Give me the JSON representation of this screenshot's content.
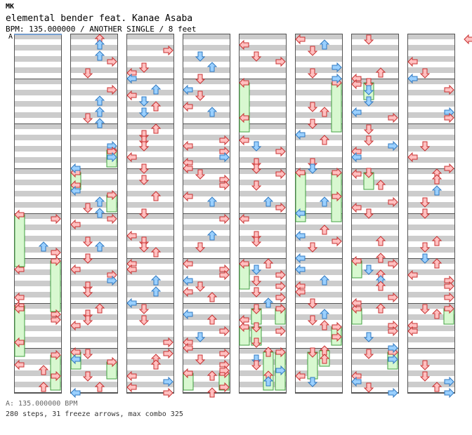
{
  "header": {
    "mark": "MK",
    "song_line": "elemental bender feat. Kanae Asaba",
    "info_line": "BPM: 135.000000 / ANOTHER SINGLE / 8 feet"
  },
  "marker": "A",
  "footer": {
    "bpm_line": "A: 135.000000 BPM",
    "stats_line": "280 steps, 31 freeze arrows, max combo 325"
  },
  "chart_data": {
    "type": "step-chart",
    "bpm": 135.0,
    "difficulty": "ANOTHER SINGLE",
    "level_feet": 8,
    "steps": 280,
    "freeze_arrows": 31,
    "max_combo": 325,
    "columns": 8,
    "measures_per_column": 8,
    "lanes": [
      "left",
      "down",
      "up",
      "right"
    ]
  },
  "colors": {
    "note_red": "#ffc0c0",
    "note_red_stroke": "#c83030",
    "note_blue": "#9ad0ff",
    "note_blue_stroke": "#2f78c0",
    "freeze_fill": "#d8f8d0",
    "freeze_stroke": "#40a040",
    "stripe": "#cccccc"
  }
}
